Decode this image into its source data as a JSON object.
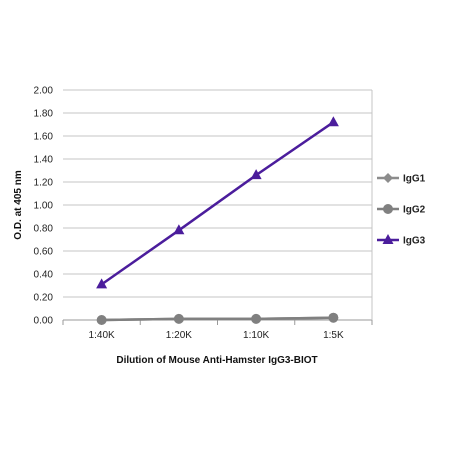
{
  "chart_data": {
    "type": "line",
    "title": "",
    "xlabel": "Dilution of Mouse Anti-Hamster IgG3-BIOT",
    "ylabel": "O.D. at 405 nm",
    "categories": [
      "1:40K",
      "1:20K",
      "1:10K",
      "1:5K"
    ],
    "ylim": [
      0,
      2
    ],
    "yticks": [
      "0.00",
      "0.20",
      "0.40",
      "0.60",
      "0.80",
      "1.00",
      "1.20",
      "1.40",
      "1.60",
      "1.80",
      "2.00"
    ],
    "grid": true,
    "legend_position": "right",
    "series": [
      {
        "name": "IgG1",
        "values": [
          0.0,
          0.01,
          0.01,
          0.02
        ],
        "color": "#8c8c8c",
        "marker": "diamond"
      },
      {
        "name": "IgG2",
        "values": [
          0.0,
          0.01,
          0.01,
          0.02
        ],
        "color": "#808080",
        "marker": "circle"
      },
      {
        "name": "IgG3",
        "values": [
          0.31,
          0.78,
          1.26,
          1.72
        ],
        "color": "#4b1d9c",
        "marker": "triangle"
      }
    ]
  }
}
